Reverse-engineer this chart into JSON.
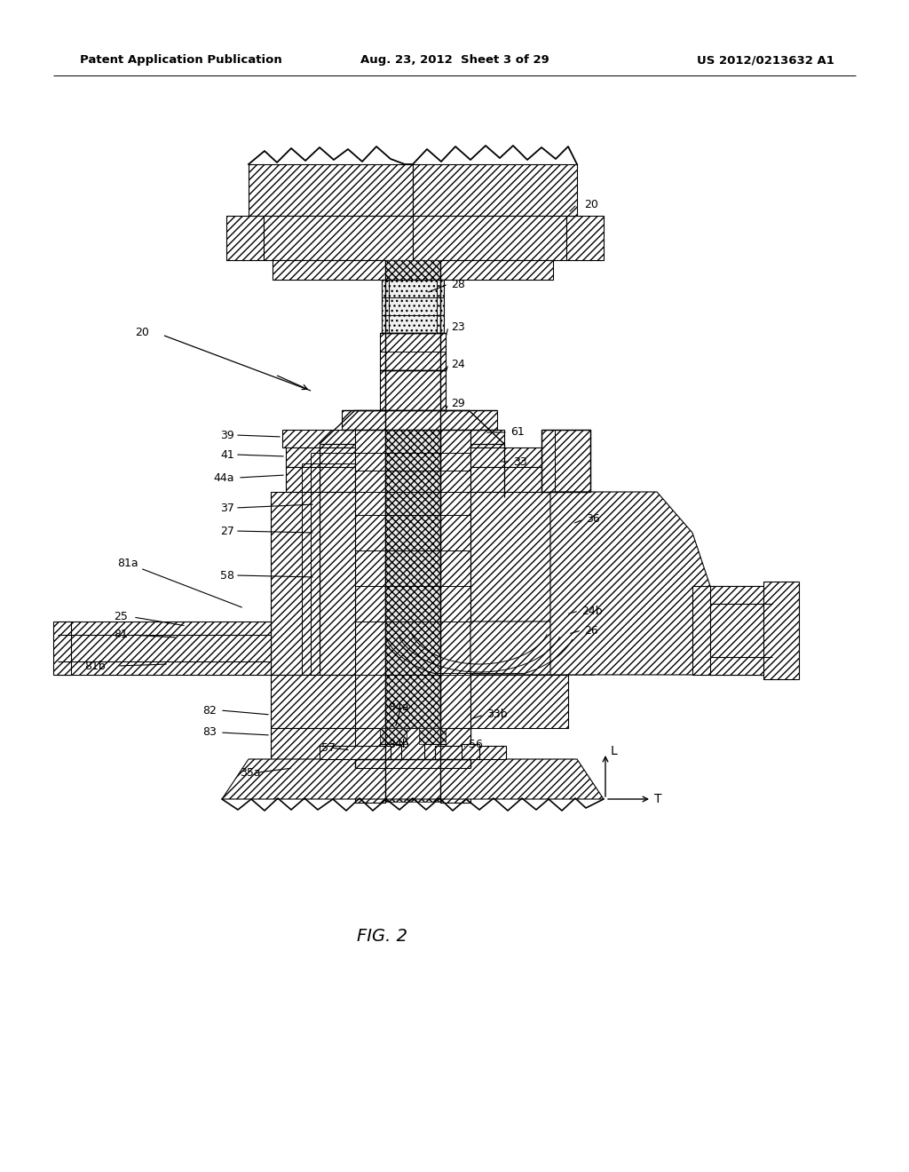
{
  "header_left": "Patent Application Publication",
  "header_center": "Aug. 23, 2012  Sheet 3 of 29",
  "header_right": "US 2012/0213632 A1",
  "figure_label": "FIG. 2",
  "bg_color": "#ffffff"
}
